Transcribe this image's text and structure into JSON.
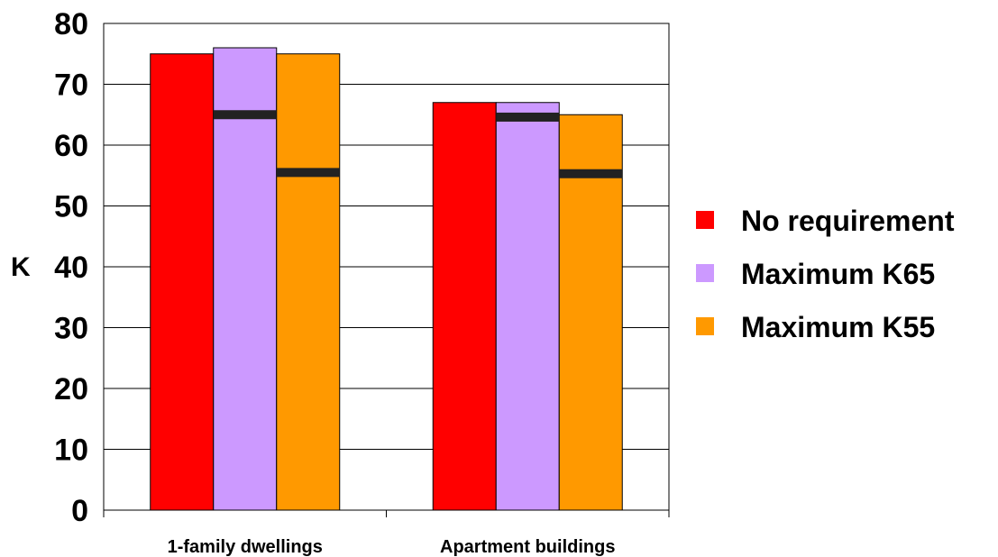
{
  "chart_data": {
    "type": "bar",
    "categories": [
      "1-family dwellings",
      "Apartment buildings"
    ],
    "series": [
      {
        "name": "No requirement",
        "color": "#ff0000",
        "values": [
          75,
          67
        ]
      },
      {
        "name": "Maximum K65",
        "color": "#cc99ff",
        "values": [
          76,
          67
        ],
        "markers": [
          65,
          64.6
        ]
      },
      {
        "name": "Maximum K55",
        "color": "#ff9900",
        "values": [
          75,
          65
        ],
        "markers": [
          55.5,
          55.3
        ]
      }
    ],
    "marker_color": "#222222",
    "xlabel": "",
    "ylabel": "K",
    "ylim": [
      0,
      80
    ],
    "yticks": [
      "0",
      "10",
      "20",
      "30",
      "40",
      "50",
      "60",
      "70",
      "80"
    ],
    "grid": true,
    "legend_position": "right"
  }
}
